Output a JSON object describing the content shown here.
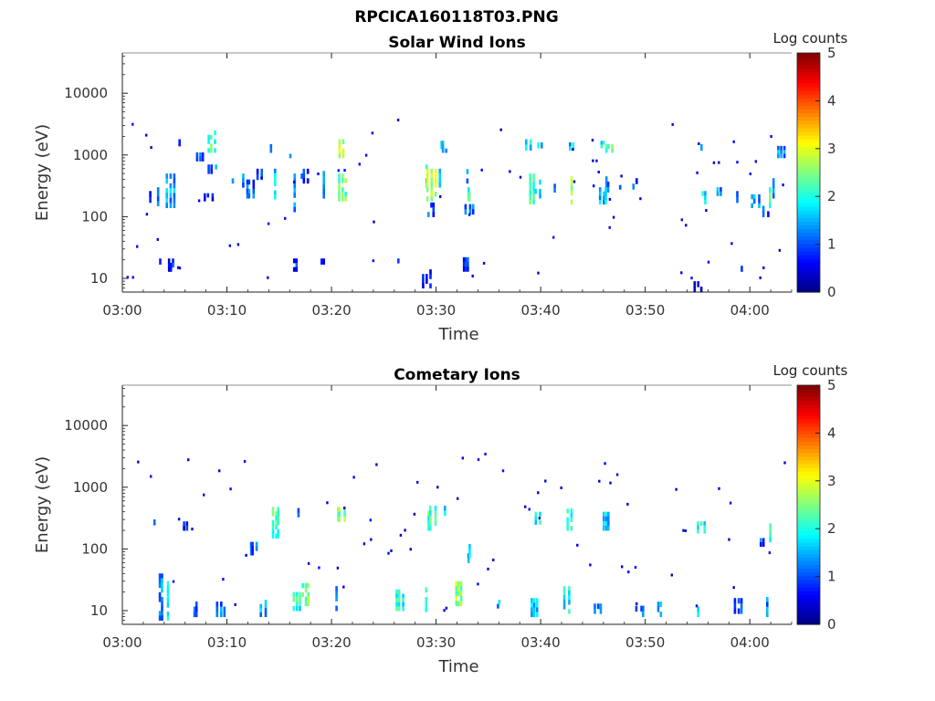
{
  "figure_title": "RPCICA160118T03.PNG",
  "chart_data": [
    {
      "type": "heatmap",
      "title": "Solar Wind Ions",
      "xlabel": "Time",
      "ylabel": "Energy (eV)",
      "yscale": "log",
      "ylim": [
        6,
        45000
      ],
      "x_range_minutes": [
        0,
        64
      ],
      "x_ticks": [
        "03:00",
        "03:10",
        "03:20",
        "03:30",
        "03:40",
        "03:50",
        "04:00"
      ],
      "y_ticks": [
        "10",
        "100",
        "1000",
        "10000"
      ],
      "colorbar": {
        "label": "Log counts",
        "min": 0,
        "max": 5,
        "ticks": [
          "0",
          "1",
          "2",
          "3",
          "4",
          "5"
        ]
      },
      "clusters": [
        [
          2.6,
          170,
          260,
          0.8
        ],
        [
          3.4,
          150,
          300,
          1.2
        ],
        [
          4.7,
          140,
          500,
          1.4
        ],
        [
          5.5,
          1400,
          1800,
          1.0
        ],
        [
          7.5,
          800,
          1100,
          0.9
        ],
        [
          8.5,
          1100,
          2500,
          2.2
        ],
        [
          8.6,
          500,
          700,
          1.2
        ],
        [
          8.3,
          180,
          240,
          0.7
        ],
        [
          10.5,
          350,
          500,
          1.0
        ],
        [
          11.5,
          300,
          500,
          1.1
        ],
        [
          12.2,
          200,
          400,
          1.0
        ],
        [
          13.2,
          400,
          600,
          0.9
        ],
        [
          14.3,
          1100,
          1500,
          1.4
        ],
        [
          14.6,
          140,
          600,
          1.6
        ],
        [
          16.2,
          900,
          1400,
          1.0
        ],
        [
          16.6,
          120,
          500,
          1.3
        ],
        [
          17.5,
          350,
          600,
          1.0
        ],
        [
          19.2,
          200,
          550,
          1.2
        ],
        [
          20.9,
          900,
          1800,
          2.6
        ],
        [
          21.0,
          180,
          500,
          2.4
        ],
        [
          29.2,
          300,
          700,
          2.0
        ],
        [
          29.6,
          180,
          600,
          2.8
        ],
        [
          29.5,
          100,
          170,
          1.0
        ],
        [
          30.5,
          300,
          600,
          1.5
        ],
        [
          30.8,
          1100,
          1700,
          1.4
        ],
        [
          33.0,
          350,
          1000,
          1.2
        ],
        [
          33.2,
          180,
          300,
          2.2
        ],
        [
          33.2,
          110,
          160,
          1.0
        ],
        [
          39.0,
          1200,
          1800,
          1.8
        ],
        [
          39.9,
          1300,
          1600,
          1.6
        ],
        [
          39.2,
          160,
          500,
          2.2
        ],
        [
          39.8,
          200,
          400,
          1.8
        ],
        [
          41.4,
          250,
          400,
          1.0
        ],
        [
          42.9,
          1200,
          1600,
          1.5
        ],
        [
          43.1,
          160,
          450,
          2.6
        ],
        [
          45.9,
          1300,
          1700,
          2.0
        ],
        [
          46.5,
          1100,
          1500,
          2.2
        ],
        [
          46.0,
          160,
          300,
          1.6
        ],
        [
          46.4,
          250,
          450,
          1.2
        ],
        [
          47.7,
          280,
          380,
          1.2
        ],
        [
          49.0,
          280,
          420,
          0.9
        ],
        [
          55.3,
          1200,
          1500,
          1.6
        ],
        [
          55.6,
          160,
          260,
          1.8
        ],
        [
          57.2,
          220,
          300,
          1.2
        ],
        [
          59.0,
          170,
          260,
          1.0
        ],
        [
          60.6,
          140,
          230,
          1.4
        ],
        [
          61.6,
          100,
          150,
          1.0
        ],
        [
          62.0,
          140,
          300,
          2.3
        ],
        [
          62.3,
          200,
          420,
          1.2
        ],
        [
          63.0,
          900,
          1400,
          1.3
        ],
        [
          3.4,
          17,
          21,
          0.7
        ],
        [
          4.7,
          13,
          21,
          0.8
        ],
        [
          16.6,
          13,
          21,
          0.8
        ],
        [
          19.2,
          17,
          21,
          0.8
        ],
        [
          26.5,
          15,
          21,
          0.8
        ],
        [
          29.2,
          7,
          14,
          0.7
        ],
        [
          32.9,
          13,
          22,
          0.8
        ],
        [
          55.1,
          6,
          9,
          0.6
        ],
        [
          59.2,
          13,
          16,
          0.6
        ]
      ]
    },
    {
      "type": "heatmap",
      "title": "Cometary Ions",
      "xlabel": "Time",
      "ylabel": "Energy (eV)",
      "yscale": "log",
      "ylim": [
        6,
        45000
      ],
      "x_range_minutes": [
        0,
        64
      ],
      "x_ticks": [
        "03:00",
        "03:10",
        "03:20",
        "03:30",
        "03:40",
        "03:50",
        "04:00"
      ],
      "y_ticks": [
        "10",
        "100",
        "1000",
        "10000"
      ],
      "colorbar": {
        "label": "Log counts",
        "min": 0,
        "max": 5,
        "ticks": [
          "0",
          "1",
          "2",
          "3",
          "4",
          "5"
        ]
      },
      "clusters": [
        [
          3.8,
          7,
          40,
          1.3
        ],
        [
          4.4,
          7,
          30,
          1.8
        ],
        [
          7.0,
          8,
          14,
          1.0
        ],
        [
          9.5,
          8,
          14,
          1.2
        ],
        [
          13.5,
          8,
          15,
          1.3
        ],
        [
          16.7,
          10,
          20,
          2.0
        ],
        [
          17.5,
          12,
          28,
          2.4
        ],
        [
          20.4,
          10,
          30,
          1.2
        ],
        [
          26.5,
          10,
          22,
          2.0
        ],
        [
          29.2,
          8,
          24,
          2.2
        ],
        [
          32.2,
          12,
          30,
          2.6
        ],
        [
          36.0,
          11,
          15,
          1.5
        ],
        [
          39.5,
          8,
          16,
          1.6
        ],
        [
          42.5,
          9,
          25,
          1.8
        ],
        [
          45.6,
          9,
          13,
          1.2
        ],
        [
          49.6,
          8,
          12,
          1.2
        ],
        [
          51.5,
          8,
          14,
          1.6
        ],
        [
          55.2,
          8,
          14,
          1.6
        ],
        [
          59.0,
          9,
          16,
          1.0
        ],
        [
          61.8,
          8,
          20,
          1.2
        ],
        [
          14.7,
          150,
          480,
          2.2
        ],
        [
          16.8,
          280,
          460,
          1.2
        ],
        [
          20.9,
          280,
          480,
          2.4
        ],
        [
          29.6,
          200,
          500,
          2.2
        ],
        [
          30.8,
          350,
          500,
          1.5
        ],
        [
          39.8,
          250,
          400,
          1.8
        ],
        [
          42.8,
          200,
          450,
          2.0
        ],
        [
          46.3,
          200,
          400,
          1.6
        ],
        [
          55.3,
          180,
          280,
          1.8
        ],
        [
          62.0,
          130,
          260,
          2.0
        ],
        [
          61.2,
          110,
          150,
          1.0
        ],
        [
          33.2,
          60,
          120,
          1.6
        ],
        [
          12.6,
          80,
          130,
          1.0
        ],
        [
          6.0,
          200,
          280,
          0.7
        ],
        [
          3.2,
          200,
          300,
          0.8
        ]
      ]
    }
  ]
}
